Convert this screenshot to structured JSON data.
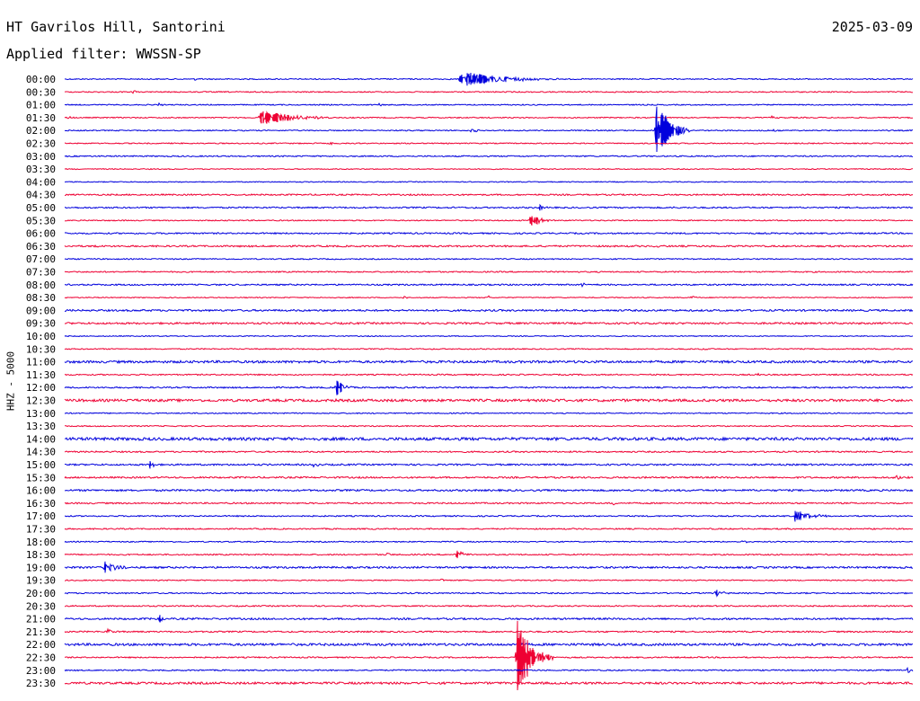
{
  "header": {
    "station": "HT Gavrilos Hill, Santorini",
    "date": "2025-03-09",
    "filter": "Applied filter: WWSSN-SP"
  },
  "chart_data": {
    "type": "line",
    "title": "HT Gavrilos Hill, Santorini",
    "ylabel": "HHZ - 5000",
    "colors": [
      "#0000dd",
      "#ee0033"
    ],
    "row_labels": [
      "00:00",
      "00:30",
      "01:00",
      "01:30",
      "02:00",
      "02:30",
      "03:00",
      "03:30",
      "04:00",
      "04:30",
      "05:00",
      "05:30",
      "06:00",
      "06:30",
      "07:00",
      "07:30",
      "08:00",
      "08:30",
      "09:00",
      "09:30",
      "10:00",
      "10:30",
      "11:00",
      "11:30",
      "12:00",
      "12:30",
      "13:00",
      "13:30",
      "14:00",
      "14:30",
      "15:00",
      "15:30",
      "16:00",
      "16:30",
      "17:00",
      "17:30",
      "18:00",
      "18:30",
      "19:00",
      "19:30",
      "20:00",
      "20:30",
      "21:00",
      "21:30",
      "22:00",
      "22:30",
      "23:00",
      "23:30"
    ],
    "x_range_minutes": [
      0,
      30
    ],
    "noise": [
      0.6,
      0.6,
      0.6,
      0.6,
      0.6,
      0.6,
      0.7,
      0.5,
      0.5,
      0.8,
      0.8,
      0.6,
      0.8,
      0.9,
      0.6,
      0.7,
      0.8,
      0.5,
      1.0,
      1.0,
      0.5,
      0.6,
      1.3,
      0.7,
      0.8,
      1.4,
      0.6,
      0.6,
      1.6,
      0.8,
      0.9,
      0.9,
      1.0,
      0.8,
      0.7,
      0.7,
      0.6,
      0.7,
      1.0,
      0.6,
      0.7,
      0.7,
      1.0,
      0.8,
      1.3,
      0.7,
      0.7,
      1.2
    ],
    "events": [
      {
        "row": 0,
        "minute": 14.0,
        "amp": 10,
        "duration": 3.5
      },
      {
        "row": 0,
        "minute": 4.6,
        "amp": 2,
        "duration": 0.3
      },
      {
        "row": 1,
        "minute": 2.4,
        "amp": 2,
        "duration": 0.3
      },
      {
        "row": 1,
        "minute": 20.0,
        "amp": 2,
        "duration": 0.2
      },
      {
        "row": 2,
        "minute": 3.3,
        "amp": 2,
        "duration": 0.3
      },
      {
        "row": 2,
        "minute": 11.1,
        "amp": 2.5,
        "duration": 0.3
      },
      {
        "row": 3,
        "minute": 6.9,
        "amp": 10,
        "duration": 2.6
      },
      {
        "row": 3,
        "minute": 0.1,
        "amp": 2,
        "duration": 0.3
      },
      {
        "row": 3,
        "minute": 25.0,
        "amp": 2,
        "duration": 0.3
      },
      {
        "row": 4,
        "minute": 14.4,
        "amp": 5,
        "duration": 0.3
      },
      {
        "row": 4,
        "minute": 20.9,
        "amp": 40,
        "duration": 1.2
      },
      {
        "row": 4,
        "minute": 25.1,
        "amp": 2,
        "duration": 0.3
      },
      {
        "row": 5,
        "minute": 9.4,
        "amp": 2,
        "duration": 0.4
      },
      {
        "row": 10,
        "minute": 16.8,
        "amp": 5,
        "duration": 0.3
      },
      {
        "row": 10,
        "minute": 21.4,
        "amp": 3,
        "duration": 0.3
      },
      {
        "row": 11,
        "minute": 16.5,
        "amp": 12,
        "duration": 0.6
      },
      {
        "row": 13,
        "minute": 1.0,
        "amp": 2,
        "duration": 0.3
      },
      {
        "row": 13,
        "minute": 20.9,
        "amp": 2,
        "duration": 0.3
      },
      {
        "row": 16,
        "minute": 18.3,
        "amp": 2,
        "duration": 0.6
      },
      {
        "row": 17,
        "minute": 12.0,
        "amp": 2,
        "duration": 0.3
      },
      {
        "row": 17,
        "minute": 15.0,
        "amp": 2,
        "duration": 0.3
      },
      {
        "row": 17,
        "minute": 22.2,
        "amp": 2,
        "duration": 0.3
      },
      {
        "row": 21,
        "minute": 22.5,
        "amp": 2,
        "duration": 0.4
      },
      {
        "row": 23,
        "minute": 24.5,
        "amp": 2,
        "duration": 0.3
      },
      {
        "row": 24,
        "minute": 9.6,
        "amp": 12,
        "duration": 0.6
      },
      {
        "row": 25,
        "minute": 17.3,
        "amp": 3,
        "duration": 0.3
      },
      {
        "row": 30,
        "minute": 3.0,
        "amp": 5,
        "duration": 0.4
      },
      {
        "row": 30,
        "minute": 8.8,
        "amp": 3,
        "duration": 0.3
      },
      {
        "row": 31,
        "minute": 29.4,
        "amp": 4,
        "duration": 0.5
      },
      {
        "row": 33,
        "minute": 19.4,
        "amp": 4,
        "duration": 0.3
      },
      {
        "row": 34,
        "minute": 25.8,
        "amp": 10,
        "duration": 1.2
      },
      {
        "row": 36,
        "minute": 24.0,
        "amp": 3,
        "duration": 0.3
      },
      {
        "row": 37,
        "minute": 11.4,
        "amp": 3,
        "duration": 0.3
      },
      {
        "row": 37,
        "minute": 13.8,
        "amp": 8,
        "duration": 0.6
      },
      {
        "row": 38,
        "minute": 1.4,
        "amp": 8,
        "duration": 1.0
      },
      {
        "row": 39,
        "minute": 13.3,
        "amp": 2,
        "duration": 0.3
      },
      {
        "row": 40,
        "minute": 23.0,
        "amp": 4,
        "duration": 0.7
      },
      {
        "row": 42,
        "minute": 3.3,
        "amp": 6,
        "duration": 0.4
      },
      {
        "row": 43,
        "minute": 1.5,
        "amp": 4,
        "duration": 0.5
      },
      {
        "row": 43,
        "minute": 5.1,
        "amp": 2,
        "duration": 0.3
      },
      {
        "row": 45,
        "minute": 16.0,
        "amp": 50,
        "duration": 1.3
      },
      {
        "row": 46,
        "minute": 29.8,
        "amp": 4,
        "duration": 0.4
      }
    ]
  }
}
